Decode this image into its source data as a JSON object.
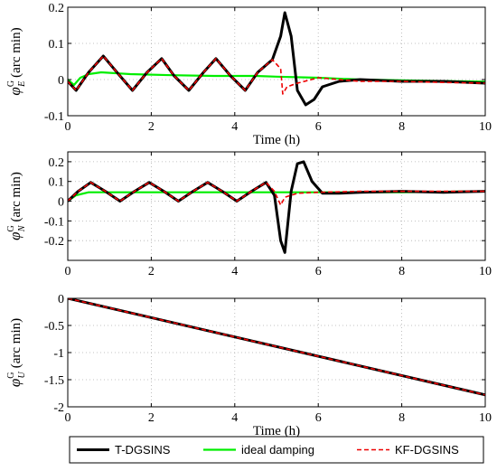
{
  "chart_data": [
    {
      "type": "line",
      "id": "east",
      "ylabel": "φ",
      "ylabel_sup": "G",
      "ylabel_sub": "E",
      "ylabel_unit": "(arc min)",
      "xlabel": "Time (h)",
      "xlim": [
        0,
        10
      ],
      "ylim": [
        -0.1,
        0.2
      ],
      "xticks": [
        0,
        2,
        4,
        6,
        8,
        10
      ],
      "yticks": [
        -0.1,
        0,
        0.1,
        0.2
      ],
      "ytick_labels": [
        "-0.1",
        "0",
        "0.1",
        "0.2"
      ],
      "grid": true,
      "series": [
        {
          "key": "T-DGSINS",
          "x": [
            0,
            0.2,
            0.5,
            0.85,
            1.25,
            1.55,
            1.9,
            2.25,
            2.55,
            2.9,
            3.25,
            3.55,
            3.9,
            4.25,
            4.55,
            4.9,
            5.1,
            5.2,
            5.35,
            5.5,
            5.7,
            5.9,
            6.1,
            6.5,
            7,
            8,
            9,
            10
          ],
          "y": [
            -0.005,
            -0.03,
            0.02,
            0.065,
            0.01,
            -0.03,
            0.02,
            0.058,
            0.01,
            -0.03,
            0.02,
            0.058,
            0.01,
            -0.03,
            0.02,
            0.055,
            0.12,
            0.185,
            0.12,
            -0.03,
            -0.07,
            -0.055,
            -0.02,
            -0.005,
            0.0,
            -0.005,
            -0.005,
            -0.01
          ]
        },
        {
          "key": "ideal damping",
          "x": [
            0,
            0.15,
            0.3,
            0.5,
            0.8,
            1.5,
            2.5,
            3.5,
            4.5,
            5.0,
            6,
            7,
            8,
            9,
            10
          ],
          "y": [
            0,
            -0.015,
            0.005,
            0.015,
            0.02,
            0.015,
            0.012,
            0.01,
            0.01,
            0.008,
            0.005,
            0.0,
            -0.002,
            -0.004,
            -0.006
          ]
        },
        {
          "key": "KF-DGSINS",
          "x": [
            0,
            0.2,
            0.5,
            0.85,
            1.25,
            1.55,
            1.9,
            2.25,
            2.55,
            2.9,
            3.25,
            3.55,
            3.9,
            4.25,
            4.55,
            4.9,
            5.1,
            5.15,
            5.25,
            5.5,
            6.0,
            6.5,
            7,
            8,
            9,
            10
          ],
          "y": [
            -0.005,
            -0.03,
            0.02,
            0.065,
            0.01,
            -0.03,
            0.02,
            0.058,
            0.01,
            -0.03,
            0.02,
            0.058,
            0.01,
            -0.03,
            0.02,
            0.055,
            0.03,
            -0.04,
            -0.02,
            -0.01,
            0.005,
            0.0,
            -0.005,
            -0.005,
            -0.008,
            -0.01
          ]
        }
      ]
    },
    {
      "type": "line",
      "id": "north",
      "ylabel": "φ",
      "ylabel_sup": "G",
      "ylabel_sub": "N",
      "ylabel_unit": "(arc min)",
      "xlabel": "",
      "xlim": [
        0,
        10
      ],
      "ylim": [
        -0.3,
        0.25
      ],
      "xticks": [
        0,
        2,
        4,
        6,
        8,
        10
      ],
      "yticks": [
        -0.2,
        -0.1,
        0,
        0.1,
        0.2
      ],
      "ytick_labels": [
        "-0.2",
        "-0.1",
        "0",
        "0.1",
        "0.2"
      ],
      "grid": true,
      "series": [
        {
          "key": "T-DGSINS",
          "x": [
            0,
            0.25,
            0.55,
            0.9,
            1.25,
            1.6,
            1.95,
            2.3,
            2.65,
            3.0,
            3.35,
            3.7,
            4.05,
            4.4,
            4.75,
            4.95,
            5.1,
            5.2,
            5.35,
            5.5,
            5.65,
            5.85,
            6.1,
            6.5,
            7,
            8,
            9,
            10
          ],
          "y": [
            0.0,
            0.05,
            0.095,
            0.05,
            0.0,
            0.05,
            0.095,
            0.05,
            0.0,
            0.05,
            0.095,
            0.05,
            0.0,
            0.05,
            0.095,
            0.03,
            -0.2,
            -0.26,
            0.05,
            0.19,
            0.2,
            0.1,
            0.04,
            0.04,
            0.045,
            0.05,
            0.045,
            0.05
          ]
        },
        {
          "key": "ideal damping",
          "x": [
            0,
            0.2,
            0.5,
            1,
            2,
            3,
            4,
            5,
            6,
            7,
            8,
            9,
            10
          ],
          "y": [
            0.0,
            0.03,
            0.045,
            0.045,
            0.045,
            0.045,
            0.045,
            0.045,
            0.045,
            0.045,
            0.045,
            0.048,
            0.05
          ]
        },
        {
          "key": "KF-DGSINS",
          "x": [
            0,
            0.25,
            0.55,
            0.9,
            1.25,
            1.6,
            1.95,
            2.3,
            2.65,
            3.0,
            3.35,
            3.7,
            4.05,
            4.4,
            4.75,
            4.95,
            5.1,
            5.2,
            5.5,
            6.0,
            7,
            8,
            9,
            10
          ],
          "y": [
            0.0,
            0.05,
            0.095,
            0.05,
            0.0,
            0.05,
            0.095,
            0.05,
            0.0,
            0.05,
            0.095,
            0.05,
            0.0,
            0.05,
            0.095,
            0.05,
            -0.02,
            0.02,
            0.04,
            0.045,
            0.05,
            0.05,
            0.05,
            0.05
          ]
        }
      ]
    },
    {
      "type": "line",
      "id": "up",
      "ylabel": "φ",
      "ylabel_sup": "G",
      "ylabel_sub": "U",
      "ylabel_unit": "(arc min)",
      "xlabel": "Time (h)",
      "xlim": [
        0,
        10
      ],
      "ylim": [
        -2,
        0
      ],
      "xticks": [
        0,
        2,
        4,
        6,
        8,
        10
      ],
      "yticks": [
        -2,
        -1.5,
        -1,
        -0.5,
        0
      ],
      "ytick_labels": [
        "-2",
        "-1.5",
        "-1",
        "-0.5",
        "0"
      ],
      "grid": true,
      "series": [
        {
          "key": "T-DGSINS",
          "x": [
            0,
            10
          ],
          "y": [
            0,
            -1.78
          ]
        },
        {
          "key": "ideal damping",
          "x": [
            0,
            10
          ],
          "y": [
            0,
            -1.78
          ]
        },
        {
          "key": "KF-DGSINS",
          "x": [
            0,
            10
          ],
          "y": [
            0,
            -1.78
          ]
        }
      ]
    }
  ],
  "legend": {
    "placement": "bottom",
    "entries": [
      {
        "key": "T-DGSINS",
        "label": "T-DGSINS",
        "color": "#000000",
        "dash": "solid"
      },
      {
        "key": "ideal damping",
        "label": "ideal damping",
        "color": "#00ee00",
        "dash": "solid"
      },
      {
        "key": "KF-DGSINS",
        "label": "KF-DGSINS",
        "color": "#ee0000",
        "dash": "dashed"
      }
    ]
  }
}
